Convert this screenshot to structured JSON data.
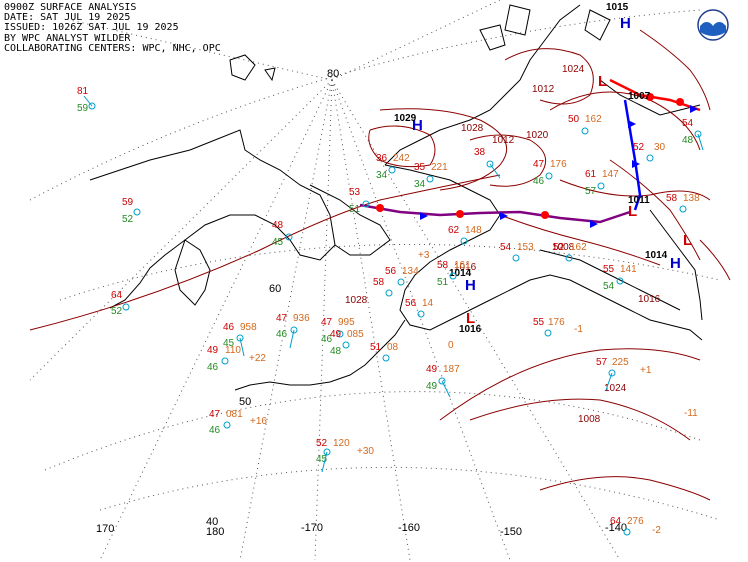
{
  "header": {
    "lines": [
      "0900Z SURFACE ANALYSIS",
      "DATE: SAT JUL 19 2025",
      "ISSUED: 1026Z SAT JUL 19 2025",
      "BY WPC ANALYST WILDER",
      "COLLABORATING CENTERS: WPC, NHC, OPC"
    ]
  },
  "colors": {
    "temp": "#cc0000",
    "dew": "#228b22",
    "press": "#d2691e",
    "isobar": "#8b0000",
    "high": "#0000cc",
    "low": "#cc0000",
    "station": "#00a0c8",
    "front_cold": "#0000ff",
    "front_warm": "#ff0000",
    "coast": "#000000"
  },
  "logo": {
    "icon": "noaa-logo-icon"
  },
  "grid_labels": {
    "lat": [
      "80",
      "60",
      "50"
    ],
    "lon": [
      "170",
      "180",
      "-170",
      "-160",
      "-150",
      "-140"
    ],
    "misc": [
      "40"
    ]
  },
  "pressure_centers": [
    {
      "type": "H",
      "value": "1029"
    },
    {
      "type": "H",
      "value": "1015"
    },
    {
      "type": "L",
      "value": "1007"
    },
    {
      "type": "L",
      "value": "1011"
    },
    {
      "type": "L",
      "value": "1014"
    },
    {
      "type": "H",
      "value": "1014"
    },
    {
      "type": "H",
      "value": "1016"
    },
    {
      "type": "L",
      "value": "1016"
    }
  ],
  "isobar_labels": [
    "1028",
    "1024",
    "1020",
    "1016",
    "1012",
    "1008",
    "1024",
    "1028",
    "1016",
    "1008",
    "1012"
  ],
  "stations": [
    {
      "t": "81",
      "d": "59",
      "p": ""
    },
    {
      "t": "59",
      "d": "52",
      "p": ""
    },
    {
      "t": "64",
      "d": "52",
      "p": ""
    },
    {
      "t": "48",
      "d": "45",
      "p": ""
    },
    {
      "t": "46",
      "d": "45",
      "p": "958"
    },
    {
      "t": "49",
      "d": "46",
      "p": "110"
    },
    {
      "t": "47",
      "d": "46",
      "p": "081"
    },
    {
      "t": "47",
      "d": "46",
      "p": "936"
    },
    {
      "t": "47",
      "d": "46",
      "p": "995"
    },
    {
      "t": "49",
      "d": "48",
      "p": "085"
    },
    {
      "t": "51",
      "d": "",
      "p": "08"
    },
    {
      "t": "52",
      "d": "45",
      "p": "120"
    },
    {
      "t": "49",
      "d": "49",
      "p": "187"
    },
    {
      "t": "55",
      "d": "",
      "p": "176"
    },
    {
      "t": "57",
      "d": "",
      "p": "225"
    },
    {
      "t": "61",
      "d": "57",
      "p": "147"
    },
    {
      "t": "47",
      "d": "46",
      "p": "176"
    },
    {
      "t": "54",
      "d": "",
      "p": "153"
    },
    {
      "t": "55",
      "d": "54",
      "p": "141"
    },
    {
      "t": "53",
      "d": "51",
      "p": ""
    },
    {
      "t": "62",
      "d": "",
      "p": "148"
    },
    {
      "t": "58",
      "d": "51",
      "p": "161"
    },
    {
      "t": "36",
      "d": "34",
      "p": "242"
    },
    {
      "t": "35",
      "d": "34",
      "p": "221"
    },
    {
      "t": "38",
      "d": "",
      "p": ""
    },
    {
      "t": "50",
      "d": "",
      "p": "162"
    },
    {
      "t": "54",
      "d": "48",
      "p": ""
    },
    {
      "t": "52",
      "d": "",
      "p": "30"
    },
    {
      "t": "58",
      "d": "",
      "p": "138"
    },
    {
      "t": "64",
      "d": "",
      "p": "276"
    },
    {
      "t": "56",
      "d": "",
      "p": "134"
    },
    {
      "t": "56",
      "d": "",
      "p": "14"
    },
    {
      "t": "58",
      "d": "",
      "p": ""
    },
    {
      "t": "52",
      "d": "",
      "p": "162"
    }
  ],
  "tendencies": [
    "+22",
    "+16",
    "+30",
    "-1",
    "+3",
    "+1",
    "-2",
    "-11",
    "0"
  ]
}
